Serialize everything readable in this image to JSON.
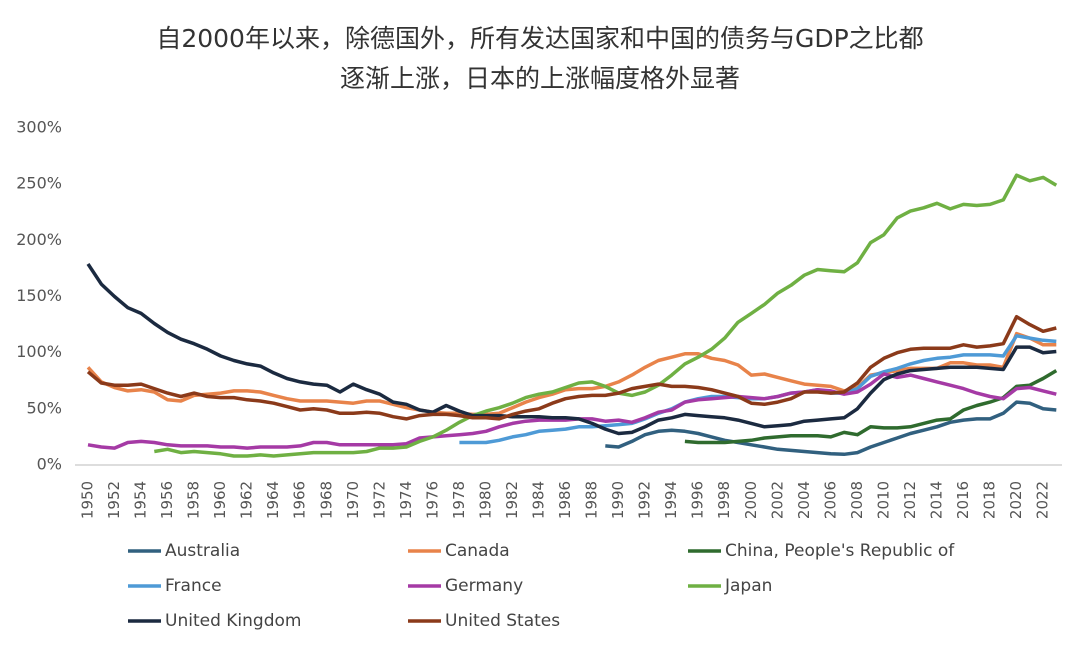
{
  "chart_data": {
    "type": "line",
    "title": [
      "自2000年以来，除德国外，所有发达国家和中国的债务与GDP之比都",
      "逐渐上涨，日本的上涨幅度格外显著"
    ],
    "categories": [
      "1950",
      null,
      "1952",
      null,
      "1954",
      null,
      "1956",
      null,
      "1958",
      null,
      "1960",
      null,
      "1962",
      null,
      "1964",
      null,
      "1966",
      null,
      "1968",
      null,
      "1970",
      null,
      "1972",
      null,
      "1974",
      null,
      "1976",
      null,
      "1978",
      null,
      "1980",
      null,
      "1982",
      null,
      "1984",
      null,
      "1986",
      null,
      "1988",
      null,
      "1990",
      null,
      "1992",
      null,
      "1994",
      null,
      "1996",
      null,
      "1998",
      null,
      "2000",
      null,
      "2002",
      null,
      "2004",
      null,
      "2006",
      null,
      "2008",
      null,
      "2010",
      null,
      "2012",
      null,
      "2014",
      null,
      "2016",
      null,
      "2018",
      null,
      "2020",
      null,
      "2022",
      null
    ],
    "ylim": [
      0,
      300
    ],
    "yticks": [
      {
        "value": 0,
        "label": "0%"
      },
      {
        "value": 50,
        "label": "50%"
      },
      {
        "value": 100,
        "label": "100%"
      },
      {
        "value": 150,
        "label": "150%"
      },
      {
        "value": 200,
        "label": "200%"
      },
      {
        "value": 250,
        "label": "250%"
      },
      {
        "value": 300,
        "label": "300%"
      }
    ],
    "grid": false,
    "series": [
      {
        "name": "Australia",
        "color": "#31607f",
        "values": [
          null,
          null,
          null,
          null,
          null,
          null,
          null,
          null,
          null,
          null,
          null,
          null,
          null,
          null,
          null,
          null,
          null,
          null,
          null,
          null,
          null,
          null,
          null,
          null,
          null,
          null,
          null,
          null,
          null,
          null,
          null,
          null,
          null,
          null,
          null,
          null,
          null,
          null,
          null,
          17,
          16,
          21,
          27,
          30,
          31,
          30,
          28,
          25,
          22,
          20,
          18,
          16,
          14,
          13,
          12,
          11,
          10,
          9.5,
          11,
          16,
          20,
          24,
          28,
          31,
          34,
          38,
          40,
          41,
          41,
          46,
          56,
          55,
          50,
          49
        ]
      },
      {
        "name": "Canada",
        "color": "#e8834a",
        "values": [
          87,
          74,
          69,
          66,
          67,
          65,
          58,
          57,
          62,
          63,
          64,
          66,
          66,
          65,
          62,
          59,
          57,
          57,
          57,
          56,
          55,
          57,
          57,
          54,
          51,
          49,
          47,
          46,
          46,
          45,
          45,
          46,
          51,
          56,
          60,
          63,
          67,
          68,
          68,
          70,
          74,
          80,
          87,
          93,
          96,
          99,
          99,
          95,
          93,
          89,
          80,
          81,
          78,
          75,
          72,
          71,
          70,
          66,
          69,
          80,
          82,
          84,
          86,
          86,
          86,
          91,
          91,
          89,
          89,
          87,
          117,
          113,
          107,
          107
        ]
      },
      {
        "name": "China, People's Republic of",
        "color": "#2f6b2e",
        "values": [
          null,
          null,
          null,
          null,
          null,
          null,
          null,
          null,
          null,
          null,
          null,
          null,
          null,
          null,
          null,
          null,
          null,
          null,
          null,
          null,
          null,
          null,
          null,
          null,
          null,
          null,
          null,
          null,
          null,
          null,
          null,
          null,
          null,
          null,
          null,
          null,
          null,
          null,
          null,
          null,
          null,
          null,
          null,
          null,
          null,
          21,
          20,
          20,
          20,
          21,
          22,
          24,
          25,
          26,
          26,
          26,
          25,
          29,
          27,
          34,
          33,
          33,
          34,
          37,
          40,
          41,
          49,
          53,
          56,
          60,
          70,
          71,
          77,
          84
        ]
      },
      {
        "name": "France",
        "color": "#4e9ad6",
        "values": [
          null,
          null,
          null,
          null,
          null,
          null,
          null,
          null,
          null,
          null,
          null,
          null,
          null,
          null,
          null,
          null,
          null,
          null,
          null,
          null,
          null,
          null,
          null,
          null,
          null,
          null,
          null,
          null,
          20,
          20,
          20,
          22,
          25,
          27,
          30,
          31,
          32,
          34,
          34,
          35,
          36,
          37,
          41,
          46,
          50,
          56,
          59,
          61,
          61,
          60,
          59,
          59,
          61,
          64,
          65,
          67,
          64,
          64,
          68,
          79,
          83,
          86,
          90,
          93,
          95,
          96,
          98,
          98,
          98,
          97,
          115,
          113,
          111,
          110
        ]
      },
      {
        "name": "Germany",
        "color": "#a53aa5",
        "values": [
          18,
          16,
          15,
          20,
          21,
          20,
          18,
          17,
          17,
          17,
          16,
          16,
          15,
          16,
          16,
          16,
          17,
          20,
          20,
          18,
          18,
          18,
          18,
          18,
          19,
          24,
          25,
          26,
          27,
          28,
          30,
          34,
          37,
          39,
          40,
          40,
          40,
          41,
          41,
          39,
          40,
          38,
          42,
          47,
          49,
          56,
          58,
          59,
          60,
          61,
          60,
          59,
          61,
          64,
          65,
          67,
          66,
          63,
          65,
          72,
          81,
          78,
          80,
          77,
          74,
          71,
          68,
          64,
          61,
          59,
          68,
          69,
          66,
          63
        ]
      },
      {
        "name": "Japan",
        "color": "#6fb043",
        "values": [
          null,
          null,
          null,
          null,
          null,
          12,
          14,
          11,
          12,
          11,
          10,
          8,
          8,
          9,
          8,
          9,
          10,
          11,
          11,
          11,
          11,
          12,
          15,
          15,
          16,
          21,
          25,
          31,
          38,
          44,
          48,
          51,
          55,
          60,
          63,
          65,
          69,
          73,
          74,
          70,
          64,
          62,
          65,
          71,
          80,
          90,
          96,
          103,
          113,
          127,
          135,
          143,
          153,
          160,
          169,
          174,
          173,
          172,
          180,
          198,
          205,
          220,
          226,
          229,
          233,
          228,
          232,
          231,
          232,
          236,
          258,
          253,
          256,
          249
        ]
      },
      {
        "name": "United Kingdom",
        "color": "#1b2a40",
        "values": [
          179,
          161,
          150,
          140,
          135,
          126,
          118,
          112,
          108,
          103,
          97,
          93,
          90,
          88,
          82,
          77,
          74,
          72,
          71,
          65,
          72,
          67,
          63,
          56,
          54,
          49,
          47,
          53,
          48,
          44,
          44,
          44,
          43,
          43,
          43,
          42,
          42,
          41,
          37,
          32,
          28,
          29,
          34,
          40,
          42,
          45,
          44,
          43,
          42,
          40,
          37,
          34,
          35,
          36,
          39,
          40,
          41,
          42,
          50,
          64,
          76,
          81,
          84,
          85,
          86,
          87,
          87,
          87,
          86,
          85,
          105,
          105,
          100,
          101
        ]
      },
      {
        "name": "United States",
        "color": "#8b3a1a",
        "values": [
          83,
          73,
          71,
          71,
          72,
          68,
          64,
          61,
          64,
          61,
          60,
          60,
          58,
          57,
          55,
          52,
          49,
          50,
          49,
          46,
          46,
          47,
          46,
          43,
          41,
          44,
          45,
          45,
          44,
          42,
          42,
          41,
          45,
          48,
          50,
          55,
          59,
          61,
          62,
          62,
          64,
          68,
          70,
          72,
          70,
          70,
          69,
          67,
          64,
          61,
          55,
          54,
          56,
          59,
          65,
          65,
          64,
          65,
          73,
          87,
          95,
          100,
          103,
          104,
          104,
          104,
          107,
          105,
          106,
          108,
          132,
          125,
          119,
          122
        ]
      }
    ]
  }
}
